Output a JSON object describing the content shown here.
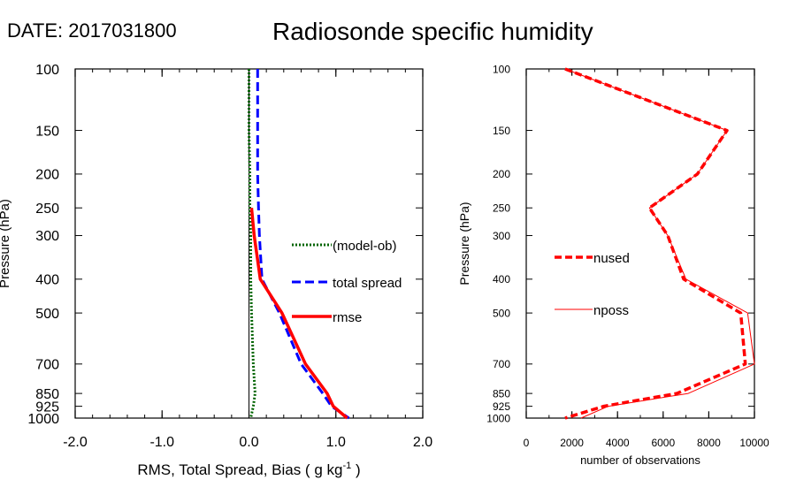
{
  "header": {
    "date": "DATE: 2017031800",
    "title": "Radiosonde specific humidity"
  },
  "chart_data": [
    {
      "type": "line",
      "xlabel": "RMS, Total Spread, Bias ( g kg",
      "xlabel_sup": "-1",
      "xlabel_end": " )",
      "ylabel": "Pressure (hPa)",
      "xlim": [
        -2.0,
        2.0
      ],
      "ylim": [
        1000,
        100
      ],
      "yscale": "log",
      "xticks": [
        "-2.0",
        "-1.0",
        "0.0",
        "1.0",
        "2.0"
      ],
      "yticks": [
        100,
        150,
        200,
        250,
        300,
        400,
        500,
        700,
        850,
        925,
        1000
      ],
      "ytick_labels": [
        "100",
        "150",
        "200",
        "250",
        "300",
        "400",
        "500",
        "700",
        "850",
        "925",
        "1000"
      ],
      "zero_line": true,
      "legend": "right-middle",
      "series": [
        {
          "name": "(model-ob)",
          "color": "#006400",
          "style": "dotted",
          "p": [
            100,
            150,
            200,
            250,
            300,
            400,
            500,
            700,
            850,
            925,
            1000
          ],
          "x": [
            0.0,
            0.0,
            0.01,
            0.01,
            0.02,
            0.02,
            0.03,
            0.05,
            0.07,
            0.05,
            0.02
          ]
        },
        {
          "name": "total spread",
          "color": "#0000ff",
          "style": "dashed",
          "p": [
            100,
            150,
            200,
            250,
            300,
            400,
            500,
            700,
            850,
            925,
            1000
          ],
          "x": [
            0.1,
            0.1,
            0.1,
            0.11,
            0.12,
            0.15,
            0.35,
            0.6,
            0.85,
            0.95,
            1.15
          ]
        },
        {
          "name": "rmse",
          "color": "#ff0000",
          "style": "solid",
          "p": [
            250,
            300,
            400,
            500,
            700,
            850,
            925,
            1000
          ],
          "x": [
            0.03,
            0.06,
            0.13,
            0.38,
            0.65,
            0.9,
            0.97,
            1.13
          ]
        }
      ]
    },
    {
      "type": "line",
      "xlabel": "number of observations",
      "ylabel": "Pressure (hPa)",
      "xlim": [
        0,
        10000
      ],
      "ylim": [
        1000,
        100
      ],
      "yscale": "log",
      "xticks": [
        "0",
        "2000",
        "4000",
        "6000",
        "8000",
        "10000"
      ],
      "yticks": [
        100,
        150,
        200,
        250,
        300,
        400,
        500,
        700,
        850,
        925,
        1000
      ],
      "ytick_labels": [
        "100",
        "150",
        "200",
        "250",
        "300",
        "400",
        "500",
        "700",
        "850",
        "925",
        "1000"
      ],
      "legend": "left-middle",
      "series": [
        {
          "name": "nused",
          "color": "#ff0000",
          "style": "dashed-thick",
          "p": [
            100,
            150,
            200,
            250,
            300,
            400,
            500,
            700,
            850,
            925,
            1000
          ],
          "x": [
            1700,
            8800,
            7500,
            5400,
            6200,
            6900,
            9400,
            9600,
            6600,
            3400,
            1700
          ]
        },
        {
          "name": "nposs",
          "color": "#ff0000",
          "style": "thin",
          "p": [
            100,
            150,
            200,
            250,
            300,
            400,
            500,
            700,
            850,
            925,
            1000
          ],
          "x": [
            1700,
            8800,
            7500,
            5400,
            6200,
            7000,
            9700,
            10000,
            7100,
            3600,
            2400
          ]
        }
      ]
    }
  ]
}
